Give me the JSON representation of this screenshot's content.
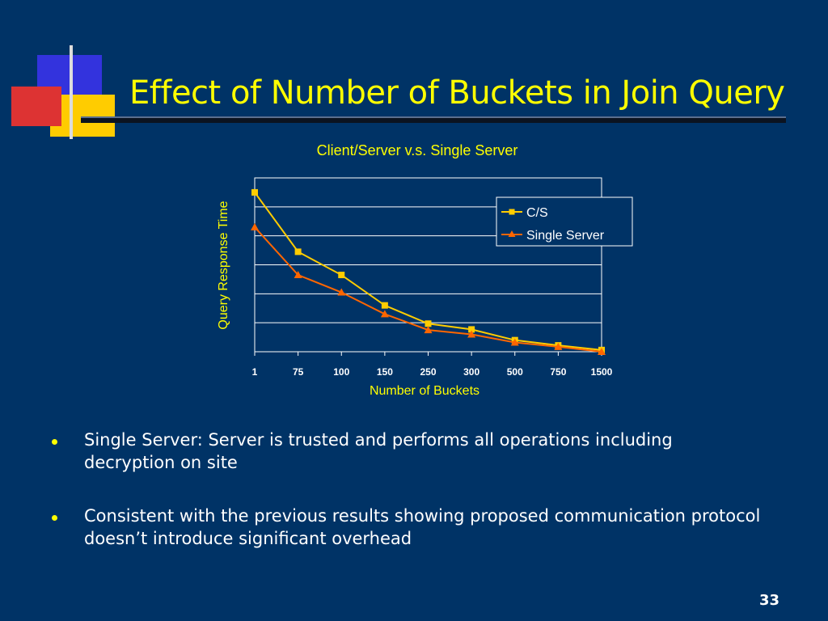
{
  "slide": {
    "title": "Effect of Number of Buckets in Join Query",
    "page_number": "33"
  },
  "bullets": [
    {
      "text": "Single Server: Server is trusted and performs all operations including decryption on site"
    },
    {
      "text": "Consistent with the previous results showing proposed communication protocol doesn’t introduce significant overhead"
    }
  ],
  "colors": {
    "background": "#003366",
    "title": "#ffff00",
    "series_cs": "#ffcc00",
    "series_single": "#ff6600"
  },
  "chart_data": {
    "type": "line",
    "title": "Client/Server v.s. Single Server",
    "xlabel": "Number of Buckets",
    "ylabel": "Query Response Time",
    "categories": [
      "1",
      "75",
      "100",
      "150",
      "250",
      "300",
      "500",
      "750",
      "1500"
    ],
    "series": [
      {
        "name": "C/S",
        "values": [
          5.5,
          3.45,
          2.65,
          1.6,
          0.97,
          0.77,
          0.4,
          0.22,
          0.06
        ],
        "color": "#ffcc00",
        "marker": "square"
      },
      {
        "name": "Single Server",
        "values": [
          4.3,
          2.65,
          2.05,
          1.3,
          0.75,
          0.6,
          0.32,
          0.17,
          0.0
        ],
        "color": "#ff6600",
        "marker": "triangle"
      }
    ],
    "ylim": [
      0,
      6
    ],
    "grid": true,
    "legend": "top-right"
  }
}
